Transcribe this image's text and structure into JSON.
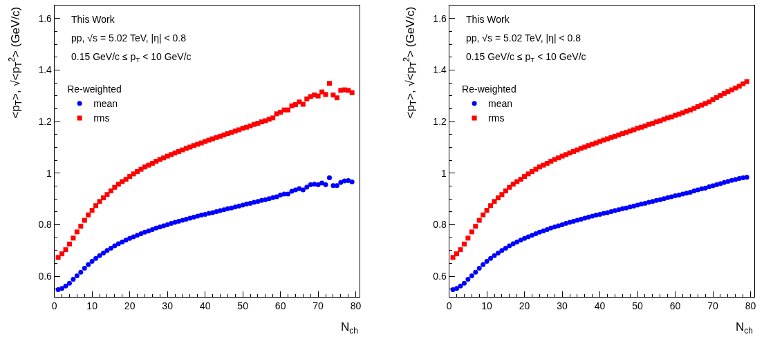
{
  "chart_data": [
    {
      "type": "scatter",
      "xlabel": "N$_{ch}$",
      "ylabel": "<p$_{T}$>, √<p$_{T}$$^{2}$> (GeV/c)",
      "annotations": [
        "This Work",
        "pp, √s = 5.02 TeV, |η| < 0.8",
        "0.15 GeV/c ≤ p$_{T}$ < 10 GeV/c"
      ],
      "legend": "top left",
      "legend_title": "Re-weighted",
      "xlim": [
        0,
        81
      ],
      "ylim": [
        0.52,
        1.65
      ],
      "xticks": [
        0,
        10,
        20,
        30,
        40,
        50,
        60,
        70,
        80
      ],
      "yticks": [
        0.6,
        0.8,
        {
          "value": 1.0,
          "label": "1"
        },
        1.2,
        1.4,
        1.6
      ],
      "x": [
        1,
        2,
        3,
        4,
        5,
        6,
        7,
        8,
        9,
        10,
        11,
        12,
        13,
        14,
        15,
        16,
        17,
        18,
        19,
        20,
        21,
        22,
        23,
        24,
        25,
        26,
        27,
        28,
        29,
        30,
        31,
        32,
        33,
        34,
        35,
        36,
        37,
        38,
        39,
        40,
        41,
        42,
        43,
        44,
        45,
        46,
        47,
        48,
        49,
        50,
        51,
        52,
        53,
        54,
        55,
        56,
        57,
        58,
        59,
        60,
        61,
        62,
        63,
        64,
        65,
        66,
        67,
        68,
        69,
        70,
        71,
        72,
        73,
        74,
        75,
        76,
        77,
        78,
        79
      ],
      "series": [
        {
          "name": "mean",
          "color": "#0000ff",
          "marker": "circle",
          "values": [
            0.548,
            0.553,
            0.562,
            0.573,
            0.588,
            0.602,
            0.616,
            0.631,
            0.645,
            0.658,
            0.669,
            0.68,
            0.69,
            0.7,
            0.709,
            0.718,
            0.726,
            0.733,
            0.74,
            0.747,
            0.753,
            0.759,
            0.765,
            0.771,
            0.776,
            0.781,
            0.787,
            0.791,
            0.796,
            0.8,
            0.805,
            0.809,
            0.813,
            0.817,
            0.821,
            0.825,
            0.829,
            0.833,
            0.837,
            0.84,
            0.844,
            0.847,
            0.851,
            0.855,
            0.858,
            0.862,
            0.865,
            0.869,
            0.872,
            0.876,
            0.88,
            0.883,
            0.887,
            0.89,
            0.894,
            0.897,
            0.901,
            0.905,
            0.908,
            0.915,
            0.919,
            0.919,
            0.93,
            0.935,
            0.94,
            0.935,
            0.946,
            0.955,
            0.957,
            0.955,
            0.962,
            0.955,
            0.982,
            0.952,
            0.952,
            0.964,
            0.97,
            0.971,
            0.966
          ]
        },
        {
          "name": "rms",
          "color": "#ff0000",
          "marker": "square",
          "values": [
            0.673,
            0.687,
            0.703,
            0.725,
            0.748,
            0.772,
            0.794,
            0.817,
            0.838,
            0.856,
            0.874,
            0.89,
            0.904,
            0.917,
            0.931,
            0.945,
            0.957,
            0.967,
            0.976,
            0.987,
            0.997,
            1.006,
            1.015,
            1.024,
            1.031,
            1.038,
            1.046,
            1.053,
            1.059,
            1.066,
            1.072,
            1.078,
            1.084,
            1.09,
            1.096,
            1.101,
            1.107,
            1.112,
            1.117,
            1.123,
            1.128,
            1.133,
            1.138,
            1.143,
            1.148,
            1.153,
            1.158,
            1.163,
            1.168,
            1.174,
            1.178,
            1.183,
            1.189,
            1.193,
            1.199,
            1.203,
            1.209,
            1.214,
            1.23,
            1.236,
            1.245,
            1.245,
            1.261,
            1.266,
            1.276,
            1.267,
            1.288,
            1.297,
            1.303,
            1.299,
            1.315,
            1.305,
            1.348,
            1.303,
            1.292,
            1.321,
            1.323,
            1.321,
            1.312
          ]
        }
      ]
    },
    {
      "type": "scatter",
      "xlabel": "N$_{ch}$",
      "ylabel": "<p$_{T}$>, √<p$_{T}$$^{2}$> (GeV/c)",
      "annotations": [
        "This Work",
        "pp, √s = 5.02 TeV, |η| < 0.8",
        "0.15 GeV/c ≤ p$_{T}$ < 10 GeV/c"
      ],
      "legend": "top left",
      "legend_title": "Re-weighted",
      "xlim": [
        0,
        81
      ],
      "ylim": [
        0.52,
        1.65
      ],
      "xticks": [
        0,
        10,
        20,
        30,
        40,
        50,
        60,
        70,
        80
      ],
      "yticks": [
        0.6,
        0.8,
        {
          "value": 1.0,
          "label": "1"
        },
        1.2,
        1.4,
        1.6
      ],
      "x": [
        1,
        2,
        3,
        4,
        5,
        6,
        7,
        8,
        9,
        10,
        11,
        12,
        13,
        14,
        15,
        16,
        17,
        18,
        19,
        20,
        21,
        22,
        23,
        24,
        25,
        26,
        27,
        28,
        29,
        30,
        31,
        32,
        33,
        34,
        35,
        36,
        37,
        38,
        39,
        40,
        41,
        42,
        43,
        44,
        45,
        46,
        47,
        48,
        49,
        50,
        51,
        52,
        53,
        54,
        55,
        56,
        57,
        58,
        59,
        60,
        61,
        62,
        63,
        64,
        65,
        66,
        67,
        68,
        69,
        70,
        71,
        72,
        73,
        74,
        75,
        76,
        77,
        78,
        79
      ],
      "series": [
        {
          "name": "mean",
          "color": "#0000ff",
          "marker": "circle",
          "values": [
            0.548,
            0.553,
            0.562,
            0.573,
            0.588,
            0.602,
            0.616,
            0.631,
            0.645,
            0.658,
            0.669,
            0.68,
            0.69,
            0.7,
            0.709,
            0.718,
            0.726,
            0.733,
            0.74,
            0.747,
            0.753,
            0.759,
            0.765,
            0.771,
            0.776,
            0.781,
            0.787,
            0.791,
            0.796,
            0.8,
            0.805,
            0.809,
            0.813,
            0.817,
            0.821,
            0.825,
            0.829,
            0.833,
            0.837,
            0.84,
            0.844,
            0.847,
            0.851,
            0.855,
            0.858,
            0.862,
            0.865,
            0.869,
            0.872,
            0.876,
            0.88,
            0.883,
            0.887,
            0.89,
            0.894,
            0.897,
            0.901,
            0.905,
            0.908,
            0.912,
            0.915,
            0.919,
            0.922,
            0.926,
            0.931,
            0.935,
            0.939,
            0.942,
            0.947,
            0.951,
            0.955,
            0.959,
            0.964,
            0.968,
            0.972,
            0.975,
            0.979,
            0.982,
            0.984
          ]
        },
        {
          "name": "rms",
          "color": "#ff0000",
          "marker": "square",
          "values": [
            0.673,
            0.687,
            0.703,
            0.725,
            0.748,
            0.772,
            0.794,
            0.817,
            0.838,
            0.856,
            0.874,
            0.89,
            0.904,
            0.917,
            0.931,
            0.945,
            0.957,
            0.967,
            0.976,
            0.987,
            0.997,
            1.006,
            1.015,
            1.024,
            1.031,
            1.038,
            1.046,
            1.053,
            1.059,
            1.066,
            1.072,
            1.078,
            1.084,
            1.09,
            1.096,
            1.101,
            1.107,
            1.112,
            1.117,
            1.123,
            1.128,
            1.133,
            1.138,
            1.143,
            1.148,
            1.153,
            1.158,
            1.163,
            1.168,
            1.174,
            1.178,
            1.183,
            1.189,
            1.193,
            1.199,
            1.203,
            1.209,
            1.214,
            1.218,
            1.224,
            1.229,
            1.234,
            1.24,
            1.245,
            1.251,
            1.258,
            1.264,
            1.27,
            1.276,
            1.285,
            1.293,
            1.301,
            1.309,
            1.316,
            1.323,
            1.33,
            1.337,
            1.346,
            1.355
          ]
        }
      ]
    }
  ]
}
